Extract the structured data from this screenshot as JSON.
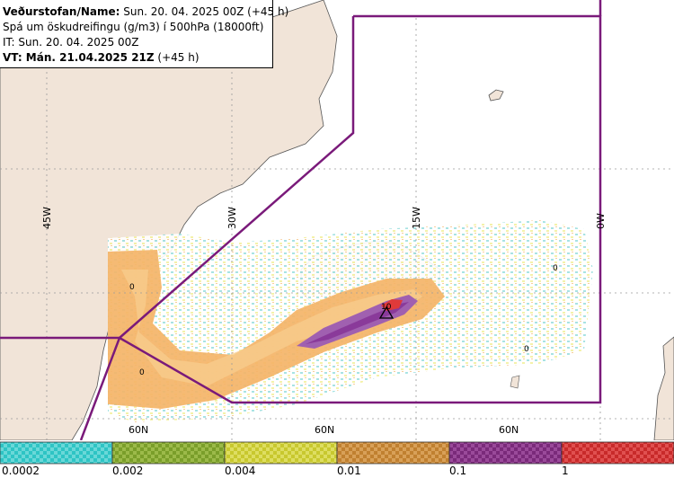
{
  "header": {
    "line1_label": "Veðurstofan/Name:",
    "line1_value": " Sun. 20. 04. 2025 00Z (+45 h)",
    "line2": "Spá um öskudreifingu (g/m3) í 500hPa (18000ft)",
    "line3": "IT: Sun. 20. 04. 2025 00Z",
    "line4_label": "VT: Mán. 21.04.2025 21Z",
    "line4_value": " (+45 h)"
  },
  "map": {
    "lon_labels": [
      "45W",
      "30W",
      "15W",
      "0W"
    ],
    "lat_labels": [
      "60N",
      "60N",
      "60N"
    ],
    "contour_labels": [
      "0",
      "0",
      "0",
      "0",
      "10"
    ]
  },
  "legend": {
    "labels": [
      "0.0002",
      "0.002",
      "0.004",
      "0.01",
      "0.1",
      "1"
    ],
    "colors": [
      "#2ec4c4",
      "#7a9e2a",
      "#c8c82e",
      "#c08030",
      "#7a2a7a",
      "#c82a2a"
    ]
  }
}
